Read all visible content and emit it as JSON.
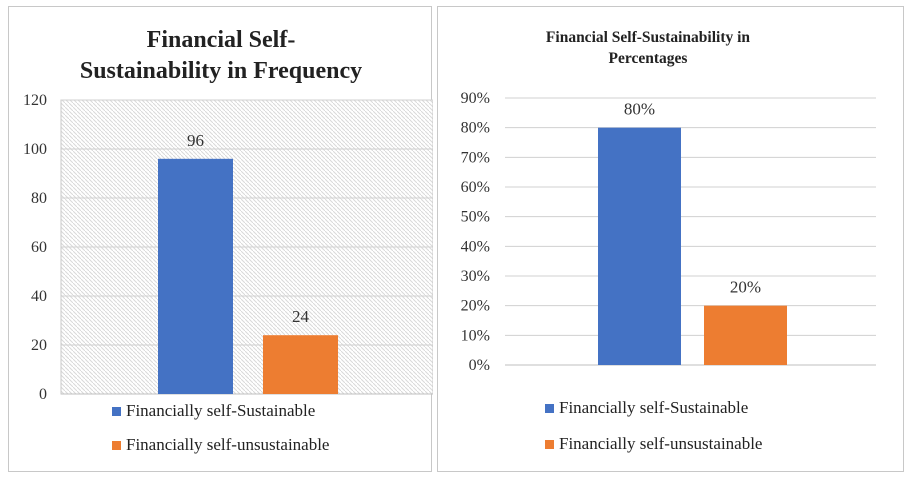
{
  "chart_data": [
    {
      "type": "bar",
      "title": "Financial Self-Sustainability in Frequency",
      "title_lines": [
        "Financial Self-",
        "Sustainability in Frequency"
      ],
      "xlabel": "",
      "ylabel": "",
      "ylim": [
        0,
        120
      ],
      "yticks": [
        "0",
        "20",
        "40",
        "60",
        "80",
        "100",
        "120"
      ],
      "tick_values": [
        0,
        20,
        40,
        60,
        80,
        100,
        120
      ],
      "grid": true,
      "legend_position": "bottom",
      "series": [
        {
          "name": "Financially self-Sustainable",
          "values": [
            96
          ],
          "label": "96",
          "color": "#4472c4"
        },
        {
          "name": "Financially self-unsustainable",
          "values": [
            24
          ],
          "label": "24",
          "color": "#ed7d31"
        }
      ]
    },
    {
      "type": "bar",
      "title": "Financial Self-Sustainability in Percentages",
      "title_lines": [
        "Financial Self-Sustainability in",
        "Percentages"
      ],
      "xlabel": "",
      "ylabel": "",
      "ylim": [
        0,
        90
      ],
      "yticks": [
        "0%",
        "10%",
        "20%",
        "30%",
        "40%",
        "50%",
        "60%",
        "70%",
        "80%",
        "90%"
      ],
      "tick_values": [
        0,
        10,
        20,
        30,
        40,
        50,
        60,
        70,
        80,
        90
      ],
      "grid": true,
      "legend_position": "bottom",
      "series": [
        {
          "name": "Financially self-Sustainable",
          "values": [
            80
          ],
          "label": "80%",
          "color": "#4472c4"
        },
        {
          "name": "Financially self-unsustainable",
          "values": [
            20
          ],
          "label": "20%",
          "color": "#ed7d31"
        }
      ]
    }
  ]
}
